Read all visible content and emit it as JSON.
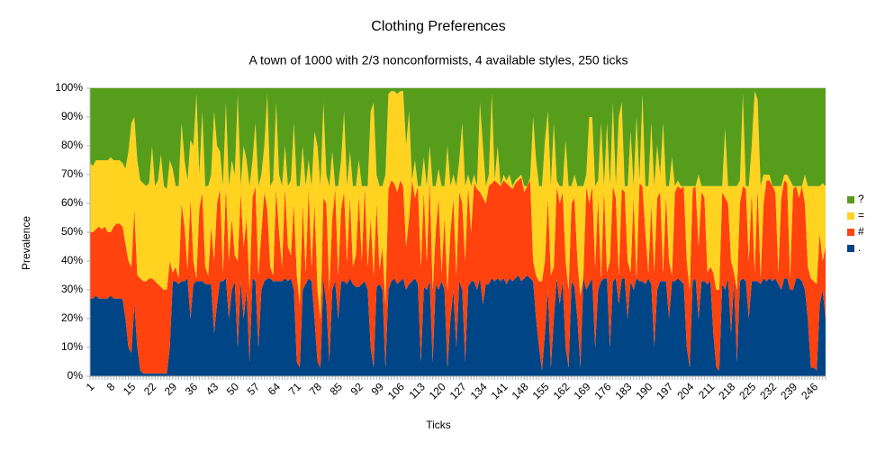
{
  "chart_data": {
    "type": "stacked-area",
    "title": "Clothing Preferences",
    "subtitle": "A town of 1000 with 2/3 nonconformists, 4 available styles, 250 ticks",
    "x_label": "Ticks",
    "y_label": "Prevalence",
    "ylim": [
      0,
      100
    ],
    "yticks": [
      {
        "value": 0,
        "label": "0%"
      },
      {
        "value": 10,
        "label": "10%"
      },
      {
        "value": 20,
        "label": "20%"
      },
      {
        "value": 30,
        "label": "30%"
      },
      {
        "value": 40,
        "label": "40%"
      },
      {
        "value": 50,
        "label": "50%"
      },
      {
        "value": 60,
        "label": "60%"
      },
      {
        "value": 70,
        "label": "70%"
      },
      {
        "value": 80,
        "label": "80%"
      },
      {
        "value": 90,
        "label": "90%"
      },
      {
        "value": 100,
        "label": "100%"
      }
    ],
    "grid": true,
    "legend": "right",
    "categories": [
      "1",
      null,
      null,
      null,
      null,
      null,
      null,
      "8",
      null,
      null,
      null,
      null,
      null,
      null,
      "15",
      null,
      null,
      null,
      null,
      null,
      null,
      "22",
      null,
      null,
      null,
      null,
      null,
      null,
      "29",
      null,
      null,
      null,
      null,
      null,
      null,
      "36",
      null,
      null,
      null,
      null,
      null,
      null,
      "43",
      null,
      null,
      null,
      null,
      null,
      null,
      "50",
      null,
      null,
      null,
      null,
      null,
      null,
      "57",
      null,
      null,
      null,
      null,
      null,
      null,
      "64",
      null,
      null,
      null,
      null,
      null,
      null,
      "71",
      null,
      null,
      null,
      null,
      null,
      null,
      "78",
      null,
      null,
      null,
      null,
      null,
      null,
      "85",
      null,
      null,
      null,
      null,
      null,
      null,
      "92",
      null,
      null,
      null,
      null,
      null,
      null,
      "99",
      null,
      null,
      null,
      null,
      null,
      null,
      "106",
      null,
      null,
      null,
      null,
      null,
      null,
      "113",
      null,
      null,
      null,
      null,
      null,
      null,
      "120",
      null,
      null,
      null,
      null,
      null,
      null,
      "127",
      null,
      null,
      null,
      null,
      null,
      null,
      "134",
      null,
      null,
      null,
      null,
      null,
      null,
      "141",
      null,
      null,
      null,
      null,
      null,
      null,
      "148",
      null,
      null,
      null,
      null,
      null,
      null,
      "155",
      null,
      null,
      null,
      null,
      null,
      null,
      "162",
      null,
      null,
      null,
      null,
      null,
      null,
      "169",
      null,
      null,
      null,
      null,
      null,
      null,
      "176",
      null,
      null,
      null,
      null,
      null,
      null,
      "183",
      null,
      null,
      null,
      null,
      null,
      null,
      "190",
      null,
      null,
      null,
      null,
      null,
      null,
      "197",
      null,
      null,
      null,
      null,
      null,
      null,
      "204",
      null,
      null,
      null,
      null,
      null,
      null,
      "211",
      null,
      null,
      null,
      null,
      null,
      null,
      "218",
      null,
      null,
      null,
      null,
      null,
      null,
      "225",
      null,
      null,
      null,
      null,
      null,
      null,
      "232",
      null,
      null,
      null,
      null,
      null,
      null,
      "239",
      null,
      null,
      null,
      null,
      null,
      null,
      "246",
      null,
      null,
      null,
      null
    ],
    "series": [
      {
        "name": ".",
        "color": "#004586",
        "values": [
          27,
          27,
          28,
          27,
          27,
          27,
          27,
          28,
          27,
          27,
          27,
          27,
          20,
          10,
          8,
          25,
          10,
          2,
          1,
          1,
          1,
          1,
          1,
          1,
          1,
          1,
          1,
          10,
          33,
          33,
          32,
          33,
          33,
          34,
          20,
          32,
          33,
          33,
          33,
          32,
          32,
          32,
          15,
          25,
          33,
          33,
          34,
          20,
          30,
          33,
          10,
          33,
          20,
          30,
          5,
          34,
          33,
          10,
          30,
          33,
          34,
          34,
          33,
          33,
          33,
          33,
          34,
          33,
          34,
          30,
          5,
          3,
          30,
          32,
          34,
          33,
          20,
          5,
          3,
          34,
          25,
          5,
          30,
          33,
          20,
          33,
          33,
          32,
          34,
          32,
          31,
          31,
          32,
          33,
          30,
          10,
          3,
          31,
          32,
          30,
          3,
          30,
          33,
          34,
          32,
          33,
          34,
          30,
          32,
          33,
          34,
          32,
          5,
          31,
          30,
          33,
          5,
          32,
          30,
          33,
          30,
          3,
          20,
          30,
          10,
          33,
          30,
          5,
          31,
          33,
          33,
          30,
          34,
          25,
          32,
          32,
          34,
          33,
          34,
          33,
          34,
          32,
          34,
          33,
          34,
          35,
          33,
          34,
          35,
          34,
          33,
          20,
          10,
          2,
          15,
          30,
          3,
          20,
          34,
          25,
          33,
          10,
          3,
          33,
          31,
          20,
          3,
          34,
          30,
          32,
          34,
          10,
          30,
          33,
          34,
          34,
          10,
          33,
          34,
          25,
          34,
          34,
          20,
          33,
          30,
          34,
          33,
          33,
          32,
          34,
          32,
          10,
          30,
          33,
          33,
          33,
          20,
          33,
          33,
          34,
          33,
          32,
          10,
          3,
          33,
          34,
          20,
          33,
          33,
          32,
          33,
          15,
          3,
          2,
          32,
          30,
          34,
          15,
          33,
          5,
          33,
          34,
          33,
          20,
          33,
          33,
          33,
          32,
          34,
          33,
          34,
          33,
          34,
          32,
          30,
          34,
          34,
          30,
          30,
          34,
          34,
          33,
          30,
          20,
          3,
          3,
          2,
          25,
          30,
          20
        ]
      },
      {
        "name": "#",
        "color": "#ff420e",
        "values": [
          23,
          23,
          23,
          25,
          24,
          25,
          23,
          22,
          25,
          26,
          26,
          25,
          26,
          30,
          30,
          33,
          25,
          32,
          32,
          32,
          33,
          33,
          32,
          31,
          30,
          29,
          29,
          30,
          3,
          5,
          2,
          27,
          19,
          3,
          42,
          8,
          1,
          25,
          31,
          6,
          3,
          20,
          25,
          35,
          32,
          3,
          32,
          20,
          25,
          9,
          30,
          31,
          25,
          25,
          25,
          28,
          33,
          25,
          20,
          31,
          24,
          4,
          2,
          32,
          17,
          5,
          32,
          12,
          8,
          30,
          30,
          22,
          30,
          4,
          31,
          5,
          40,
          25,
          17,
          28,
          35,
          25,
          25,
          32,
          15,
          25,
          31,
          8,
          28,
          6,
          11,
          32,
          8,
          33,
          8,
          45,
          32,
          29,
          5,
          15,
          22,
          35,
          35,
          33,
          32,
          35,
          32,
          15,
          23,
          35,
          28,
          34,
          33,
          33,
          10,
          35,
          25,
          18,
          32,
          3,
          25,
          27,
          30,
          32,
          25,
          31,
          30,
          35,
          35,
          17,
          34,
          35,
          30,
          37,
          28,
          34,
          33,
          35,
          33,
          33,
          34,
          35,
          32,
          32,
          33,
          33,
          36,
          30,
          31,
          34,
          7,
          15,
          23,
          31,
          25,
          32,
          32,
          18,
          32,
          35,
          31,
          30,
          27,
          27,
          31,
          20,
          25,
          1,
          36,
          28,
          32,
          28,
          32,
          1,
          31,
          2,
          30,
          33,
          28,
          10,
          31,
          30,
          20,
          3,
          32,
          0,
          34,
          33,
          18,
          2,
          28,
          26,
          32,
          31,
          3,
          30,
          20,
          2,
          31,
          32,
          32,
          34,
          30,
          27,
          32,
          32,
          25,
          31,
          29,
          4,
          5,
          21,
          27,
          28,
          32,
          32,
          26,
          25,
          3,
          25,
          27,
          32,
          32,
          20,
          31,
          3,
          33,
          2,
          26,
          35,
          34,
          33,
          30,
          4,
          32,
          34,
          33,
          4,
          35,
          32,
          28,
          33,
          30,
          18,
          31,
          30,
          30,
          25,
          10,
          25
        ]
      },
      {
        "name": "=",
        "color": "#ffd320",
        "values": [
          24,
          23,
          24,
          23,
          24,
          23,
          25,
          26,
          23,
          22,
          22,
          22,
          26,
          38,
          50,
          32,
          40,
          34,
          34,
          33,
          33,
          46,
          33,
          36,
          46,
          36,
          35,
          35,
          36,
          28,
          32,
          28,
          23,
          31,
          20,
          40,
          64,
          12,
          28,
          28,
          31,
          18,
          52,
          20,
          13,
          30,
          29,
          26,
          20,
          28,
          58,
          2,
          35,
          20,
          36,
          13,
          22,
          31,
          20,
          16,
          40,
          28,
          33,
          30,
          20,
          28,
          14,
          21,
          26,
          28,
          31,
          41,
          20,
          30,
          10,
          28,
          25,
          50,
          46,
          33,
          10,
          36,
          23,
          1,
          31,
          17,
          28,
          26,
          16,
          28,
          24,
          12,
          26,
          0,
          28,
          37,
          60,
          10,
          29,
          21,
          45,
          33,
          31,
          32,
          34,
          31,
          33,
          35,
          37,
          0,
          13,
          0,
          28,
          12,
          26,
          12,
          36,
          16,
          10,
          30,
          11,
          50,
          16,
          8,
          31,
          11,
          28,
          26,
          4,
          16,
          3,
          1,
          31,
          18,
          6,
          4,
          31,
          0,
          13,
          0,
          2,
          1,
          4,
          1,
          1,
          1,
          1,
          2,
          0,
          1,
          50,
          40,
          33,
          33,
          42,
          30,
          31,
          50,
          2,
          6,
          2,
          42,
          36,
          6,
          8,
          26,
          38,
          31,
          4,
          30,
          24,
          28,
          6,
          54,
          1,
          52,
          26,
          29,
          4,
          55,
          30,
          2,
          26,
          49,
          4,
          56,
          1,
          32,
          16,
          30,
          28,
          30,
          18,
          6,
          52,
          3,
          26,
          41,
          2,
          2,
          1,
          0,
          26,
          36,
          1,
          0,
          25,
          2,
          4,
          30,
          28,
          30,
          36,
          36,
          2,
          24,
          6,
          26,
          30,
          36,
          8,
          32,
          1,
          26,
          16,
          63,
          30,
          32,
          10,
          2,
          2,
          0,
          2,
          30,
          4,
          2,
          3,
          34,
          1,
          0,
          4,
          0,
          10,
          28,
          32,
          33,
          34,
          16,
          27,
          21
        ]
      },
      {
        "name": "?",
        "color": "#579d1c",
        "values": [
          26,
          27,
          25,
          25,
          25,
          25,
          25,
          24,
          25,
          25,
          25,
          26,
          28,
          22,
          12,
          10,
          25,
          32,
          33,
          34,
          33,
          20,
          34,
          32,
          23,
          34,
          35,
          25,
          28,
          34,
          34,
          12,
          25,
          32,
          18,
          20,
          2,
          30,
          8,
          34,
          34,
          30,
          8,
          20,
          22,
          34,
          5,
          34,
          25,
          30,
          2,
          34,
          20,
          25,
          34,
          25,
          12,
          34,
          30,
          20,
          2,
          34,
          32,
          5,
          30,
          34,
          20,
          34,
          32,
          12,
          34,
          34,
          20,
          34,
          25,
          34,
          15,
          20,
          34,
          5,
          30,
          34,
          22,
          34,
          34,
          25,
          8,
          34,
          22,
          34,
          34,
          25,
          34,
          34,
          34,
          8,
          5,
          30,
          34,
          34,
          30,
          2,
          1,
          1,
          2,
          1,
          1,
          20,
          8,
          32,
          25,
          34,
          34,
          24,
          34,
          20,
          34,
          34,
          28,
          34,
          34,
          20,
          34,
          30,
          34,
          25,
          12,
          34,
          30,
          34,
          30,
          34,
          5,
          20,
          34,
          30,
          2,
          32,
          20,
          34,
          30,
          32,
          30,
          34,
          32,
          31,
          30,
          34,
          34,
          31,
          10,
          25,
          34,
          34,
          18,
          8,
          34,
          12,
          32,
          34,
          34,
          18,
          34,
          34,
          30,
          34,
          34,
          34,
          30,
          10,
          10,
          34,
          32,
          12,
          34,
          12,
          34,
          5,
          34,
          10,
          5,
          34,
          34,
          15,
          34,
          10,
          32,
          2,
          34,
          34,
          12,
          34,
          20,
          30,
          12,
          34,
          34,
          24,
          34,
          32,
          34,
          34,
          34,
          34,
          34,
          34,
          30,
          34,
          34,
          34,
          34,
          34,
          34,
          34,
          34,
          14,
          34,
          34,
          34,
          34,
          32,
          2,
          34,
          34,
          20,
          1,
          4,
          34,
          30,
          30,
          30,
          34,
          34,
          34,
          34,
          30,
          30,
          32,
          34,
          34,
          34,
          34,
          30,
          34,
          34,
          34,
          34,
          34,
          33,
          34
        ]
      }
    ]
  }
}
